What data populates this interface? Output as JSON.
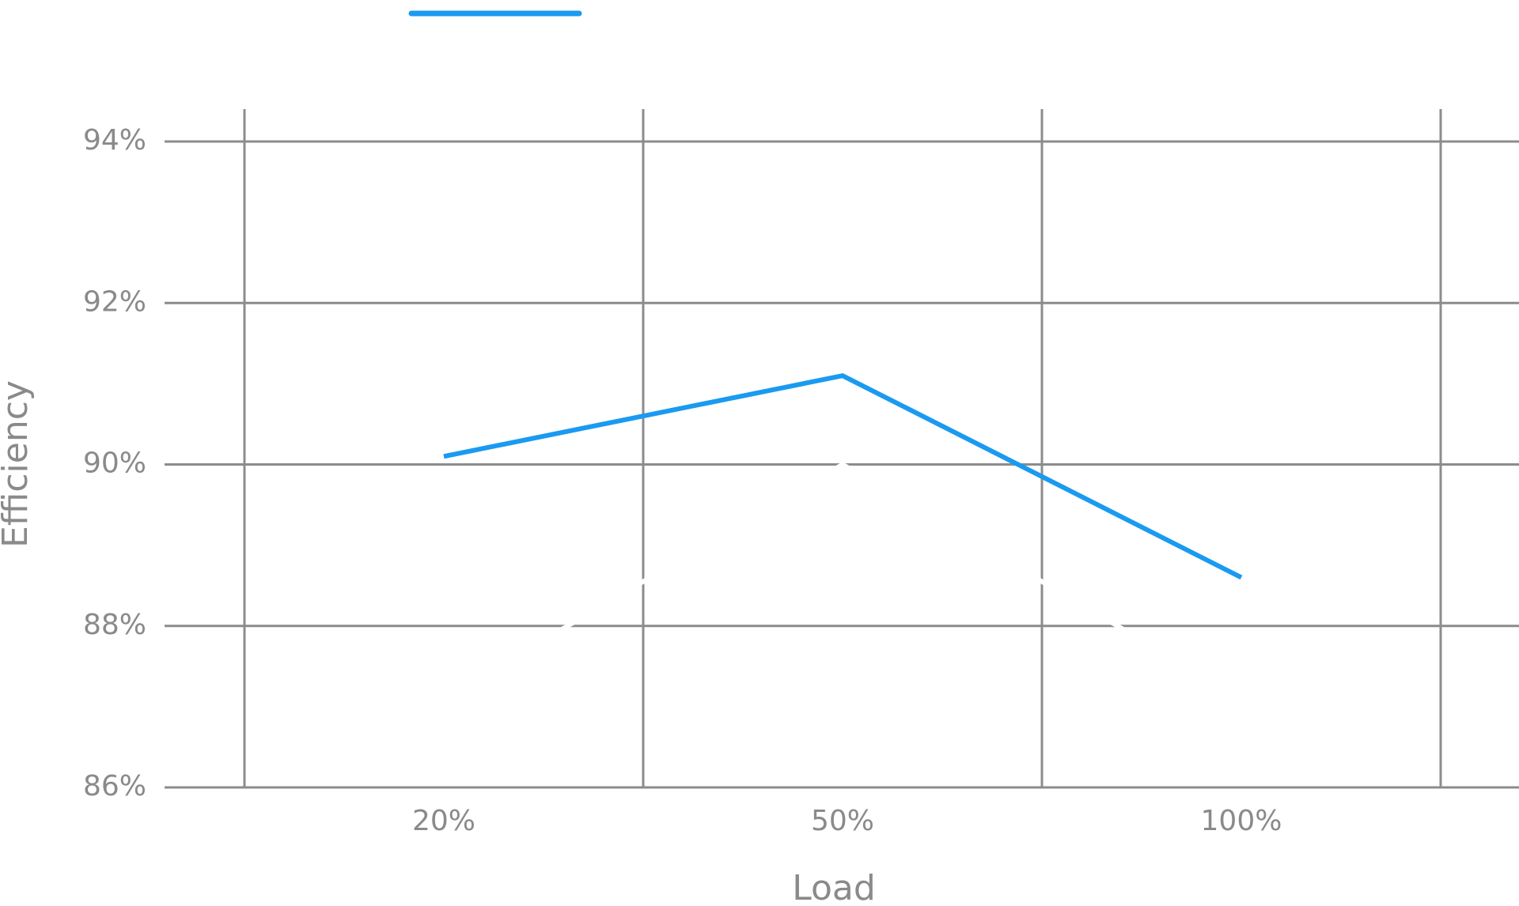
{
  "chart_data": {
    "type": "line",
    "x_label": "Load",
    "y_label": "Efficiency",
    "categories": [
      "20%",
      "50%",
      "100%"
    ],
    "series": [
      {
        "color": "#1a9af0",
        "values": [
          90.1,
          91.1,
          88.6
        ]
      },
      {
        "color": "#ffffff",
        "values": [
          87.1,
          90,
          87.1
        ]
      }
    ],
    "ylim": [
      86,
      94
    ],
    "yticks": [
      {
        "value": 86,
        "label": "86%"
      },
      {
        "value": 88,
        "label": "88%"
      },
      {
        "value": 90,
        "label": "90%"
      },
      {
        "value": 92,
        "label": "92%"
      },
      {
        "value": 94,
        "label": "94%"
      }
    ],
    "grid": true
  }
}
